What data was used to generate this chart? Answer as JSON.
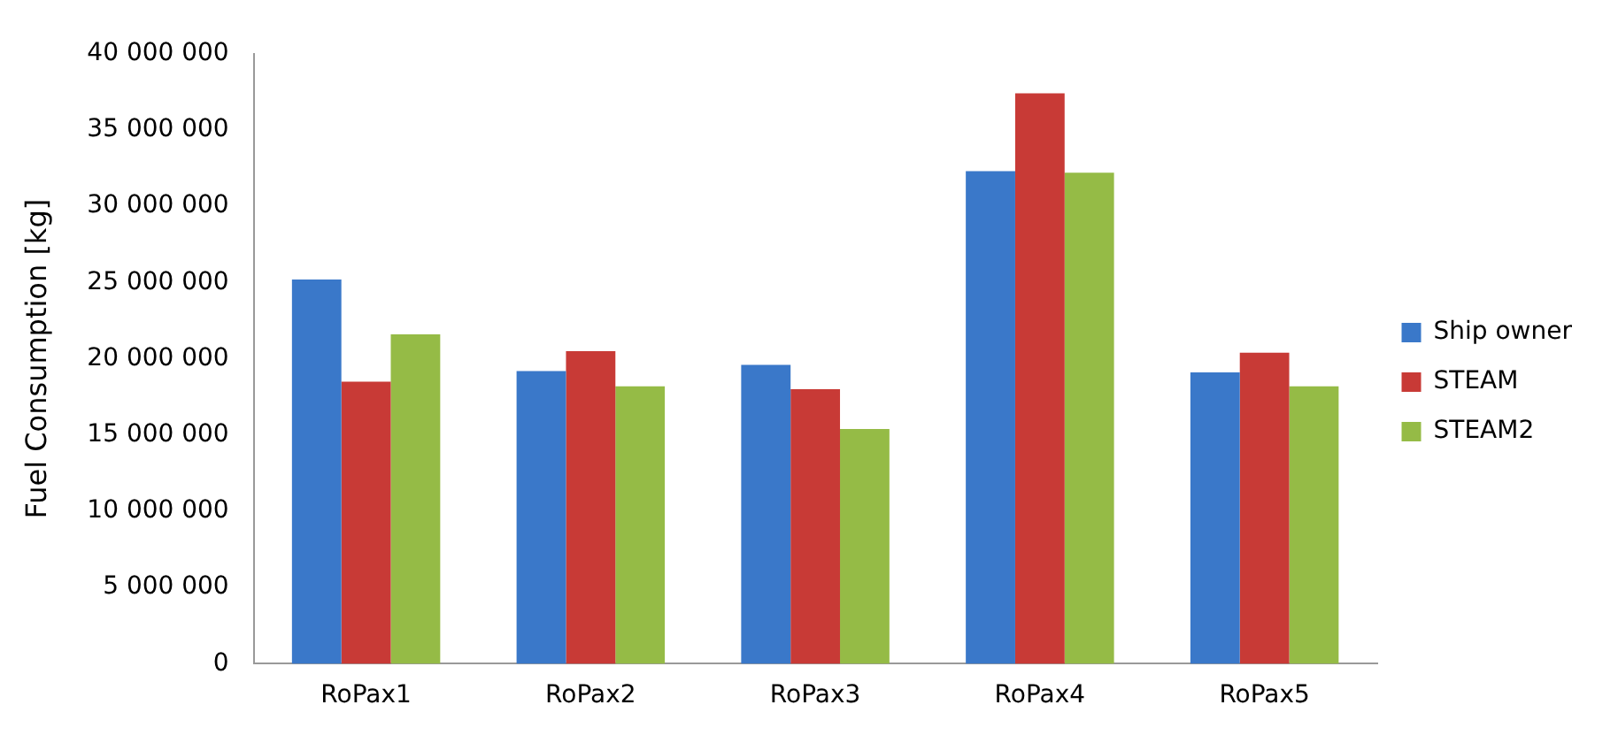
{
  "chart_data": {
    "type": "bar",
    "ylabel": "Fuel Consumption [kg]",
    "categories": [
      "RoPax1",
      "RoPax2",
      "RoPax3",
      "RoPax4",
      "RoPax5"
    ],
    "series": [
      {
        "name": "Ship owner",
        "color": "#3a78c9",
        "values": [
          25200000,
          19200000,
          19600000,
          32300000,
          19100000
        ]
      },
      {
        "name": "STEAM",
        "color": "#c83a36",
        "values": [
          18500000,
          20500000,
          18000000,
          37400000,
          20400000
        ]
      },
      {
        "name": "STEAM2",
        "color": "#95bb46",
        "values": [
          21600000,
          18200000,
          15400000,
          32200000,
          18200000
        ]
      }
    ],
    "ylim": [
      0,
      40000000
    ],
    "yticks": [
      0,
      {
        "value": 5000000,
        "label": "5 000 000"
      },
      {
        "value": 10000000,
        "label": "10 000 000"
      },
      {
        "value": 15000000,
        "label": "15 000 000"
      },
      {
        "value": 20000000,
        "label": "20 000 000"
      },
      {
        "value": 25000000,
        "label": "25 000 000"
      },
      {
        "value": 30000000,
        "label": "30 000 000"
      },
      {
        "value": 35000000,
        "label": "35 000 000"
      },
      {
        "value": 40000000,
        "label": "40 000 000"
      }
    ],
    "grid": false,
    "legend": "right"
  }
}
